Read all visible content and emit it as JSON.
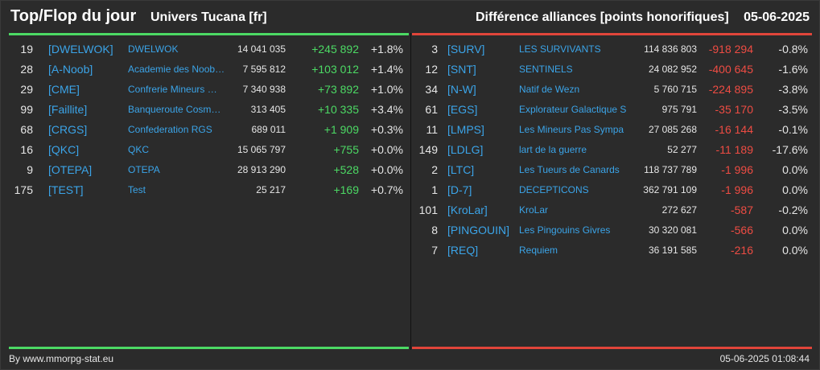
{
  "header": {
    "title": "Top/Flop du jour",
    "universe": "Univers Tucana [fr]",
    "subtitle": "Différence alliances [points honorifiques]",
    "date": "05-06-2025"
  },
  "colors": {
    "gain": "#4cd964",
    "loss": "#ee4c43",
    "link": "#3ba4e8",
    "background": "#2b2b2b"
  },
  "top": [
    {
      "rank": "19",
      "tag": "[DWELWOK]",
      "name": "DWELWOK",
      "points": "14 041 035",
      "diff": "+245 892",
      "pct": "+1.8%"
    },
    {
      "rank": "28",
      "tag": "[A-Noob]",
      "name": "Academie des Noob…",
      "points": "7 595 812",
      "diff": "+103 012",
      "pct": "+1.4%"
    },
    {
      "rank": "29",
      "tag": "[CME]",
      "name": "Confrerie Mineurs …",
      "points": "7 340 938",
      "diff": "+73 892",
      "pct": "+1.0%"
    },
    {
      "rank": "99",
      "tag": "[Faillite]",
      "name": "Banqueroute Cosm…",
      "points": "313 405",
      "diff": "+10 335",
      "pct": "+3.4%"
    },
    {
      "rank": "68",
      "tag": "[CRGS]",
      "name": "Confederation RGS",
      "points": "689 011",
      "diff": "+1 909",
      "pct": "+0.3%"
    },
    {
      "rank": "16",
      "tag": "[QKC]",
      "name": "QKC",
      "points": "15 065 797",
      "diff": "+755",
      "pct": "+0.0%"
    },
    {
      "rank": "9",
      "tag": "[OTEPA]",
      "name": "OTEPA",
      "points": "28 913 290",
      "diff": "+528",
      "pct": "+0.0%"
    },
    {
      "rank": "175",
      "tag": "[TEST]",
      "name": "Test",
      "points": "25 217",
      "diff": "+169",
      "pct": "+0.7%"
    }
  ],
  "flop": [
    {
      "rank": "3",
      "tag": "[SURV]",
      "name": "LES SURVIVANTS",
      "points": "114 836 803",
      "diff": "-918 294",
      "pct": "-0.8%"
    },
    {
      "rank": "12",
      "tag": "[SNT]",
      "name": "SENTINELS",
      "points": "24 082 952",
      "diff": "-400 645",
      "pct": "-1.6%"
    },
    {
      "rank": "34",
      "tag": "[N-W]",
      "name": "Natif de Wezn",
      "points": "5 760 715",
      "diff": "-224 895",
      "pct": "-3.8%"
    },
    {
      "rank": "61",
      "tag": "[EGS]",
      "name": "Explorateur Galactique S",
      "points": "975 791",
      "diff": "-35 170",
      "pct": "-3.5%"
    },
    {
      "rank": "11",
      "tag": "[LMPS]",
      "name": "Les Mineurs Pas Sympa",
      "points": "27 085 268",
      "diff": "-16 144",
      "pct": "-0.1%"
    },
    {
      "rank": "149",
      "tag": "[LDLG]",
      "name": "lart de la guerre",
      "points": "52 277",
      "diff": "-11 189",
      "pct": "-17.6%"
    },
    {
      "rank": "2",
      "tag": "[LTC]",
      "name": "Les Tueurs de Canards",
      "points": "118 737 789",
      "diff": "-1 996",
      "pct": "0.0%"
    },
    {
      "rank": "1",
      "tag": "[D-7]",
      "name": "DECEPTICONS",
      "points": "362 791 109",
      "diff": "-1 996",
      "pct": "0.0%"
    },
    {
      "rank": "101",
      "tag": "[KroLar]",
      "name": "KroLar",
      "points": "272 627",
      "diff": "-587",
      "pct": "-0.2%"
    },
    {
      "rank": "8",
      "tag": "[PINGOUIN]",
      "name": "Les Pingouins Givres",
      "points": "30 320 081",
      "diff": "-566",
      "pct": "0.0%"
    },
    {
      "rank": "7",
      "tag": "[REQ]",
      "name": "Requiem",
      "points": "36 191 585",
      "diff": "-216",
      "pct": "0.0%"
    }
  ],
  "footer": {
    "source": "By www.mmorpg-stat.eu",
    "timestamp": "05-06-2025 01:08:44"
  }
}
